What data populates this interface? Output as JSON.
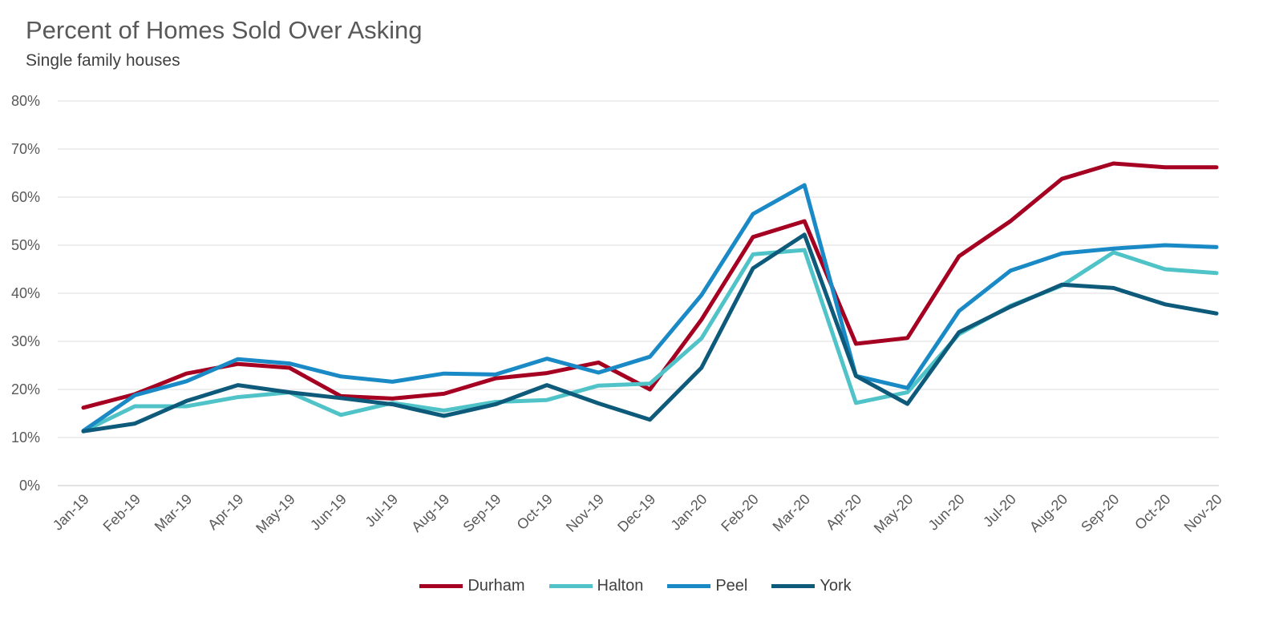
{
  "chart_data": {
    "type": "line",
    "title": "Percent of Homes Sold Over Asking",
    "subtitle": "Single family houses",
    "xlabel": "",
    "ylabel": "",
    "ylim": [
      0,
      80
    ],
    "yticks": [
      "0%",
      "10%",
      "20%",
      "30%",
      "40%",
      "50%",
      "60%",
      "70%",
      "80%"
    ],
    "grid": true,
    "legend_position": "bottom",
    "categories": [
      "Jan-19",
      "Feb-19",
      "Mar-19",
      "Apr-19",
      "May-19",
      "Jun-19",
      "Jul-19",
      "Aug-19",
      "Sep-19",
      "Oct-19",
      "Nov-19",
      "Dec-19",
      "Jan-20",
      "Feb-20",
      "Mar-20",
      "Apr-20",
      "May-20",
      "Jun-20",
      "Jul-20",
      "Aug-20",
      "Sep-20",
      "Oct-20",
      "Nov-20"
    ],
    "series": [
      {
        "name": "Durham",
        "color": "#a50021",
        "values": [
          16.2,
          19.0,
          23.3,
          25.3,
          24.5,
          18.6,
          18.1,
          19.1,
          22.3,
          23.4,
          25.6,
          20.0,
          34.5,
          51.7,
          55.0,
          29.5,
          30.7,
          47.7,
          55.0,
          63.8,
          67.0,
          66.2,
          66.2
        ]
      },
      {
        "name": "Halton",
        "color": "#4fc3c8",
        "values": [
          11.3,
          16.5,
          16.5,
          18.4,
          19.4,
          14.7,
          17.2,
          15.6,
          17.4,
          17.8,
          20.8,
          21.2,
          30.6,
          48.1,
          49.0,
          17.2,
          19.4,
          31.5,
          37.4,
          41.6,
          48.5,
          45.0,
          44.2
        ]
      },
      {
        "name": "Peel",
        "color": "#1a8ac6",
        "values": [
          11.4,
          18.8,
          21.7,
          26.3,
          25.4,
          22.7,
          21.6,
          23.3,
          23.1,
          26.4,
          23.5,
          26.8,
          39.6,
          56.5,
          62.5,
          22.8,
          20.3,
          36.3,
          44.7,
          48.3,
          49.3,
          50.0,
          49.6
        ]
      },
      {
        "name": "York",
        "color": "#0d5a7a",
        "values": [
          11.3,
          12.9,
          17.6,
          20.9,
          19.4,
          18.2,
          16.9,
          14.5,
          16.9,
          20.9,
          17.1,
          13.7,
          24.5,
          45.2,
          52.2,
          22.8,
          17.0,
          31.9,
          37.2,
          41.8,
          41.1,
          37.7,
          35.8
        ]
      }
    ]
  }
}
